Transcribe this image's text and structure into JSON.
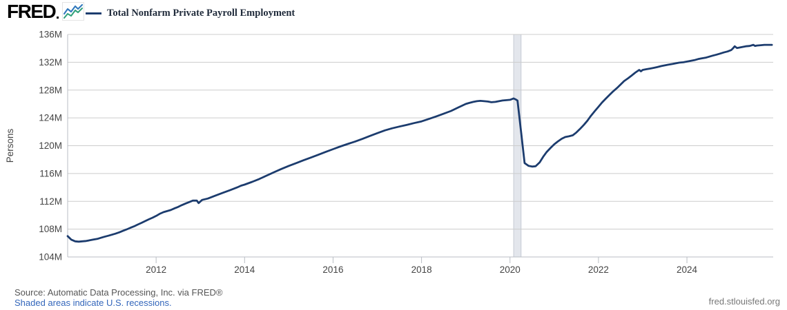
{
  "header": {
    "logo_text": "FRED",
    "legend_label": "Total Nonfarm Private Payroll Employment"
  },
  "footer": {
    "source_text": "Source: Automatic Data Processing, Inc. via FRED®",
    "recession_note": "Shaded areas indicate U.S. recessions.",
    "site_url": "fred.stlouisfed.org"
  },
  "colors": {
    "series_line": "#1c3c6e",
    "gridline": "#cccccc",
    "axis_border": "#b9bec4",
    "tick_label": "#444444",
    "recession_fill": "#e3e6ec",
    "recession_edge": "#c4cad4",
    "link_blue": "#3366bb",
    "logo_black": "#000000",
    "logo_icon_blue": "#3178bc",
    "logo_icon_green": "#33a27c"
  },
  "chart_data": {
    "type": "line",
    "title": "Total Nonfarm Private Payroll Employment",
    "ylabel": "Persons",
    "unit_suffix": "M",
    "ylim": [
      104,
      136
    ],
    "ytick_step": 4,
    "xlim": [
      2010.0,
      2025.95
    ],
    "xticks": [
      2012,
      2014,
      2016,
      2018,
      2020,
      2022,
      2024
    ],
    "grid": true,
    "legend_position": "top-left",
    "recession_bands": [
      [
        2020.083,
        2020.25
      ]
    ],
    "series": [
      {
        "name": "Total Nonfarm Private Payroll Employment",
        "color": "#1c3c6e",
        "points": [
          [
            2010.0,
            107.0
          ],
          [
            2010.08,
            106.5
          ],
          [
            2010.17,
            106.25
          ],
          [
            2010.25,
            106.2
          ],
          [
            2010.33,
            106.25
          ],
          [
            2010.42,
            106.3
          ],
          [
            2010.5,
            106.4
          ],
          [
            2010.58,
            106.5
          ],
          [
            2010.67,
            106.6
          ],
          [
            2010.75,
            106.75
          ],
          [
            2010.83,
            106.9
          ],
          [
            2010.92,
            107.05
          ],
          [
            2011.0,
            107.2
          ],
          [
            2011.08,
            107.35
          ],
          [
            2011.17,
            107.55
          ],
          [
            2011.25,
            107.75
          ],
          [
            2011.33,
            107.95
          ],
          [
            2011.42,
            108.2
          ],
          [
            2011.5,
            108.4
          ],
          [
            2011.58,
            108.65
          ],
          [
            2011.67,
            108.9
          ],
          [
            2011.75,
            109.15
          ],
          [
            2011.83,
            109.4
          ],
          [
            2011.92,
            109.65
          ],
          [
            2012.0,
            109.9
          ],
          [
            2012.08,
            110.2
          ],
          [
            2012.17,
            110.45
          ],
          [
            2012.25,
            110.6
          ],
          [
            2012.33,
            110.75
          ],
          [
            2012.42,
            111.0
          ],
          [
            2012.5,
            111.2
          ],
          [
            2012.58,
            111.45
          ],
          [
            2012.67,
            111.7
          ],
          [
            2012.75,
            111.9
          ],
          [
            2012.83,
            112.1
          ],
          [
            2012.92,
            112.1
          ],
          [
            2012.96,
            111.75
          ],
          [
            2013.04,
            112.2
          ],
          [
            2013.17,
            112.4
          ],
          [
            2013.33,
            112.8
          ],
          [
            2013.5,
            113.2
          ],
          [
            2013.67,
            113.6
          ],
          [
            2013.83,
            114.0
          ],
          [
            2013.92,
            114.25
          ],
          [
            2014.0,
            114.4
          ],
          [
            2014.17,
            114.8
          ],
          [
            2014.33,
            115.2
          ],
          [
            2014.5,
            115.7
          ],
          [
            2014.67,
            116.2
          ],
          [
            2014.83,
            116.65
          ],
          [
            2015.0,
            117.1
          ],
          [
            2015.17,
            117.5
          ],
          [
            2015.33,
            117.9
          ],
          [
            2015.5,
            118.3
          ],
          [
            2015.67,
            118.7
          ],
          [
            2015.83,
            119.1
          ],
          [
            2016.0,
            119.5
          ],
          [
            2016.17,
            119.9
          ],
          [
            2016.33,
            120.25
          ],
          [
            2016.5,
            120.6
          ],
          [
            2016.67,
            121.0
          ],
          [
            2016.83,
            121.4
          ],
          [
            2017.0,
            121.8
          ],
          [
            2017.17,
            122.2
          ],
          [
            2017.33,
            122.5
          ],
          [
            2017.5,
            122.75
          ],
          [
            2017.67,
            123.0
          ],
          [
            2017.83,
            123.25
          ],
          [
            2018.0,
            123.5
          ],
          [
            2018.17,
            123.85
          ],
          [
            2018.33,
            124.2
          ],
          [
            2018.5,
            124.6
          ],
          [
            2018.67,
            125.0
          ],
          [
            2018.83,
            125.5
          ],
          [
            2019.0,
            126.0
          ],
          [
            2019.08,
            126.15
          ],
          [
            2019.17,
            126.3
          ],
          [
            2019.25,
            126.4
          ],
          [
            2019.33,
            126.45
          ],
          [
            2019.42,
            126.4
          ],
          [
            2019.5,
            126.35
          ],
          [
            2019.58,
            126.25
          ],
          [
            2019.67,
            126.3
          ],
          [
            2019.75,
            126.4
          ],
          [
            2019.83,
            126.5
          ],
          [
            2019.92,
            126.55
          ],
          [
            2020.0,
            126.6
          ],
          [
            2020.08,
            126.8
          ],
          [
            2020.13,
            126.65
          ],
          [
            2020.17,
            126.5
          ],
          [
            2020.25,
            122.0
          ],
          [
            2020.33,
            117.5
          ],
          [
            2020.42,
            117.1
          ],
          [
            2020.5,
            117.0
          ],
          [
            2020.58,
            117.05
          ],
          [
            2020.67,
            117.6
          ],
          [
            2020.75,
            118.4
          ],
          [
            2020.83,
            119.1
          ],
          [
            2020.92,
            119.7
          ],
          [
            2021.0,
            120.2
          ],
          [
            2021.08,
            120.6
          ],
          [
            2021.17,
            121.0
          ],
          [
            2021.25,
            121.25
          ],
          [
            2021.33,
            121.35
          ],
          [
            2021.42,
            121.5
          ],
          [
            2021.5,
            121.9
          ],
          [
            2021.58,
            122.4
          ],
          [
            2021.67,
            123.0
          ],
          [
            2021.75,
            123.6
          ],
          [
            2021.83,
            124.3
          ],
          [
            2021.92,
            125.0
          ],
          [
            2022.0,
            125.6
          ],
          [
            2022.08,
            126.2
          ],
          [
            2022.17,
            126.8
          ],
          [
            2022.25,
            127.3
          ],
          [
            2022.33,
            127.8
          ],
          [
            2022.42,
            128.3
          ],
          [
            2022.5,
            128.8
          ],
          [
            2022.58,
            129.3
          ],
          [
            2022.67,
            129.7
          ],
          [
            2022.75,
            130.1
          ],
          [
            2022.83,
            130.5
          ],
          [
            2022.92,
            130.9
          ],
          [
            2022.96,
            130.7
          ],
          [
            2023.0,
            130.9
          ],
          [
            2023.08,
            131.0
          ],
          [
            2023.17,
            131.1
          ],
          [
            2023.25,
            131.2
          ],
          [
            2023.33,
            131.3
          ],
          [
            2023.42,
            131.45
          ],
          [
            2023.5,
            131.55
          ],
          [
            2023.58,
            131.65
          ],
          [
            2023.67,
            131.75
          ],
          [
            2023.75,
            131.85
          ],
          [
            2023.83,
            131.95
          ],
          [
            2023.92,
            132.0
          ],
          [
            2024.0,
            132.1
          ],
          [
            2024.08,
            132.2
          ],
          [
            2024.17,
            132.3
          ],
          [
            2024.25,
            132.45
          ],
          [
            2024.33,
            132.55
          ],
          [
            2024.42,
            132.65
          ],
          [
            2024.5,
            132.8
          ],
          [
            2024.58,
            132.95
          ],
          [
            2024.67,
            133.1
          ],
          [
            2024.75,
            133.25
          ],
          [
            2024.83,
            133.4
          ],
          [
            2024.92,
            133.55
          ],
          [
            2025.0,
            133.75
          ],
          [
            2025.04,
            134.0
          ],
          [
            2025.08,
            134.3
          ],
          [
            2025.13,
            134.05
          ],
          [
            2025.17,
            134.1
          ],
          [
            2025.25,
            134.2
          ],
          [
            2025.33,
            134.3
          ],
          [
            2025.42,
            134.35
          ],
          [
            2025.5,
            134.5
          ],
          [
            2025.54,
            134.35
          ],
          [
            2025.58,
            134.4
          ],
          [
            2025.67,
            134.45
          ],
          [
            2025.75,
            134.5
          ],
          [
            2025.83,
            134.5
          ],
          [
            2025.92,
            134.5
          ]
        ]
      }
    ]
  }
}
